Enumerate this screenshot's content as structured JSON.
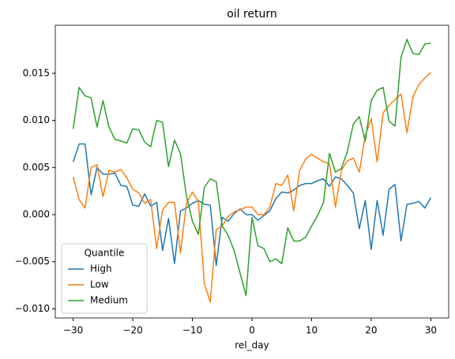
{
  "chart_data": {
    "type": "line",
    "title": "oil return",
    "xlabel": "rel_day",
    "x": [
      -30,
      -29,
      -28,
      -27,
      -26,
      -25,
      -24,
      -23,
      -22,
      -21,
      -20,
      -19,
      -18,
      -17,
      -16,
      -15,
      -14,
      -13,
      -12,
      -11,
      -10,
      -9,
      -8,
      -7,
      -6,
      -5,
      -4,
      -3,
      -2,
      -1,
      0,
      1,
      2,
      3,
      4,
      5,
      6,
      7,
      8,
      9,
      10,
      11,
      12,
      13,
      14,
      15,
      16,
      17,
      18,
      19,
      20,
      21,
      22,
      23,
      24,
      25,
      26,
      27,
      28,
      29,
      30
    ],
    "series": [
      {
        "name": "High",
        "color": "#1f77b4",
        "values": [
          0.0056,
          0.0075,
          0.0075,
          0.0021,
          0.005,
          0.0043,
          0.0043,
          0.0044,
          0.0031,
          0.003,
          0.001,
          0.0009,
          0.0022,
          0.0009,
          0.0013,
          -0.0038,
          -0.0004,
          -0.0052,
          0.0004,
          0.0007,
          0.0012,
          0.0015,
          0.0011,
          0.001,
          -0.0054,
          -0.0003,
          -0.0007,
          0.0001,
          0.0006,
          0.0,
          0.0,
          -0.0006,
          -0.0001,
          0.0004,
          0.0017,
          0.0024,
          0.0023,
          0.0026,
          0.0031,
          0.0033,
          0.0033,
          0.0036,
          0.0038,
          0.003,
          0.004,
          0.0038,
          0.0031,
          0.0023,
          -0.0015,
          0.0015,
          -0.0037,
          0.0015,
          -0.0022,
          0.0027,
          0.0032,
          -0.0028,
          0.0011,
          0.0012,
          0.0014,
          0.0007,
          0.0018
        ]
      },
      {
        "name": "Low",
        "color": "#ff7f0e",
        "values": [
          0.004,
          0.0016,
          0.0007,
          0.005,
          0.0053,
          0.0019,
          0.0047,
          0.0045,
          0.0048,
          0.0039,
          0.0027,
          0.0023,
          0.0012,
          0.0016,
          -0.0036,
          0.0005,
          0.0013,
          0.0013,
          -0.0041,
          0.0012,
          0.0024,
          0.0014,
          -0.0073,
          -0.0093,
          -0.0016,
          -0.0012,
          -0.0002,
          0.0003,
          0.0005,
          0.0008,
          0.0008,
          0.0,
          0.0,
          0.0008,
          0.0033,
          0.0031,
          0.0042,
          0.0004,
          0.0047,
          0.0059,
          0.0064,
          0.006,
          0.0056,
          0.0054,
          0.0008,
          0.0047,
          0.0057,
          0.006,
          0.0045,
          0.0084,
          0.0102,
          0.0056,
          0.0108,
          0.0116,
          0.0122,
          0.0128,
          0.0087,
          0.0125,
          0.0138,
          0.0145,
          0.0151
        ]
      },
      {
        "name": "Medium",
        "color": "#2ca02c",
        "values": [
          0.0091,
          0.0135,
          0.0126,
          0.0124,
          0.0093,
          0.0121,
          0.0093,
          0.008,
          0.0078,
          0.0076,
          0.0091,
          0.009,
          0.0077,
          0.0072,
          0.01,
          0.0098,
          0.0051,
          0.0079,
          0.0065,
          0.002,
          -0.0007,
          -0.0021,
          0.0029,
          0.0038,
          0.0035,
          -0.0012,
          -0.0022,
          -0.0038,
          -0.0062,
          -0.0086,
          -0.0003,
          -0.0033,
          -0.0036,
          -0.005,
          -0.0047,
          -0.0052,
          -0.0014,
          -0.0028,
          -0.0028,
          -0.0024,
          -0.0012,
          -0.0001,
          0.0013,
          0.0065,
          0.0045,
          0.0049,
          0.0067,
          0.0096,
          0.0104,
          0.0078,
          0.0121,
          0.0132,
          0.0135,
          0.0099,
          0.0094,
          0.0167,
          0.0186,
          0.0171,
          0.017,
          0.0181,
          0.0182
        ]
      }
    ],
    "legend_title": "Quantile",
    "legend": "lower left",
    "xlim": [
      -33,
      33
    ],
    "ylim": [
      -0.01097,
      0.0201
    ],
    "xticks": [
      {
        "value": -30,
        "label": "−30"
      },
      {
        "value": -20,
        "label": "−20"
      },
      {
        "value": -10,
        "label": "−10"
      },
      0,
      10,
      20,
      30
    ],
    "yticks": [
      {
        "value": -0.01,
        "label": "−0.010"
      },
      {
        "value": -0.005,
        "label": "−0.005"
      },
      {
        "value": 0,
        "label": "0.000"
      },
      {
        "value": 0.005,
        "label": "0.005"
      },
      {
        "value": 0.01,
        "label": "0.010"
      },
      {
        "value": 0.015,
        "label": "0.015"
      }
    ]
  }
}
